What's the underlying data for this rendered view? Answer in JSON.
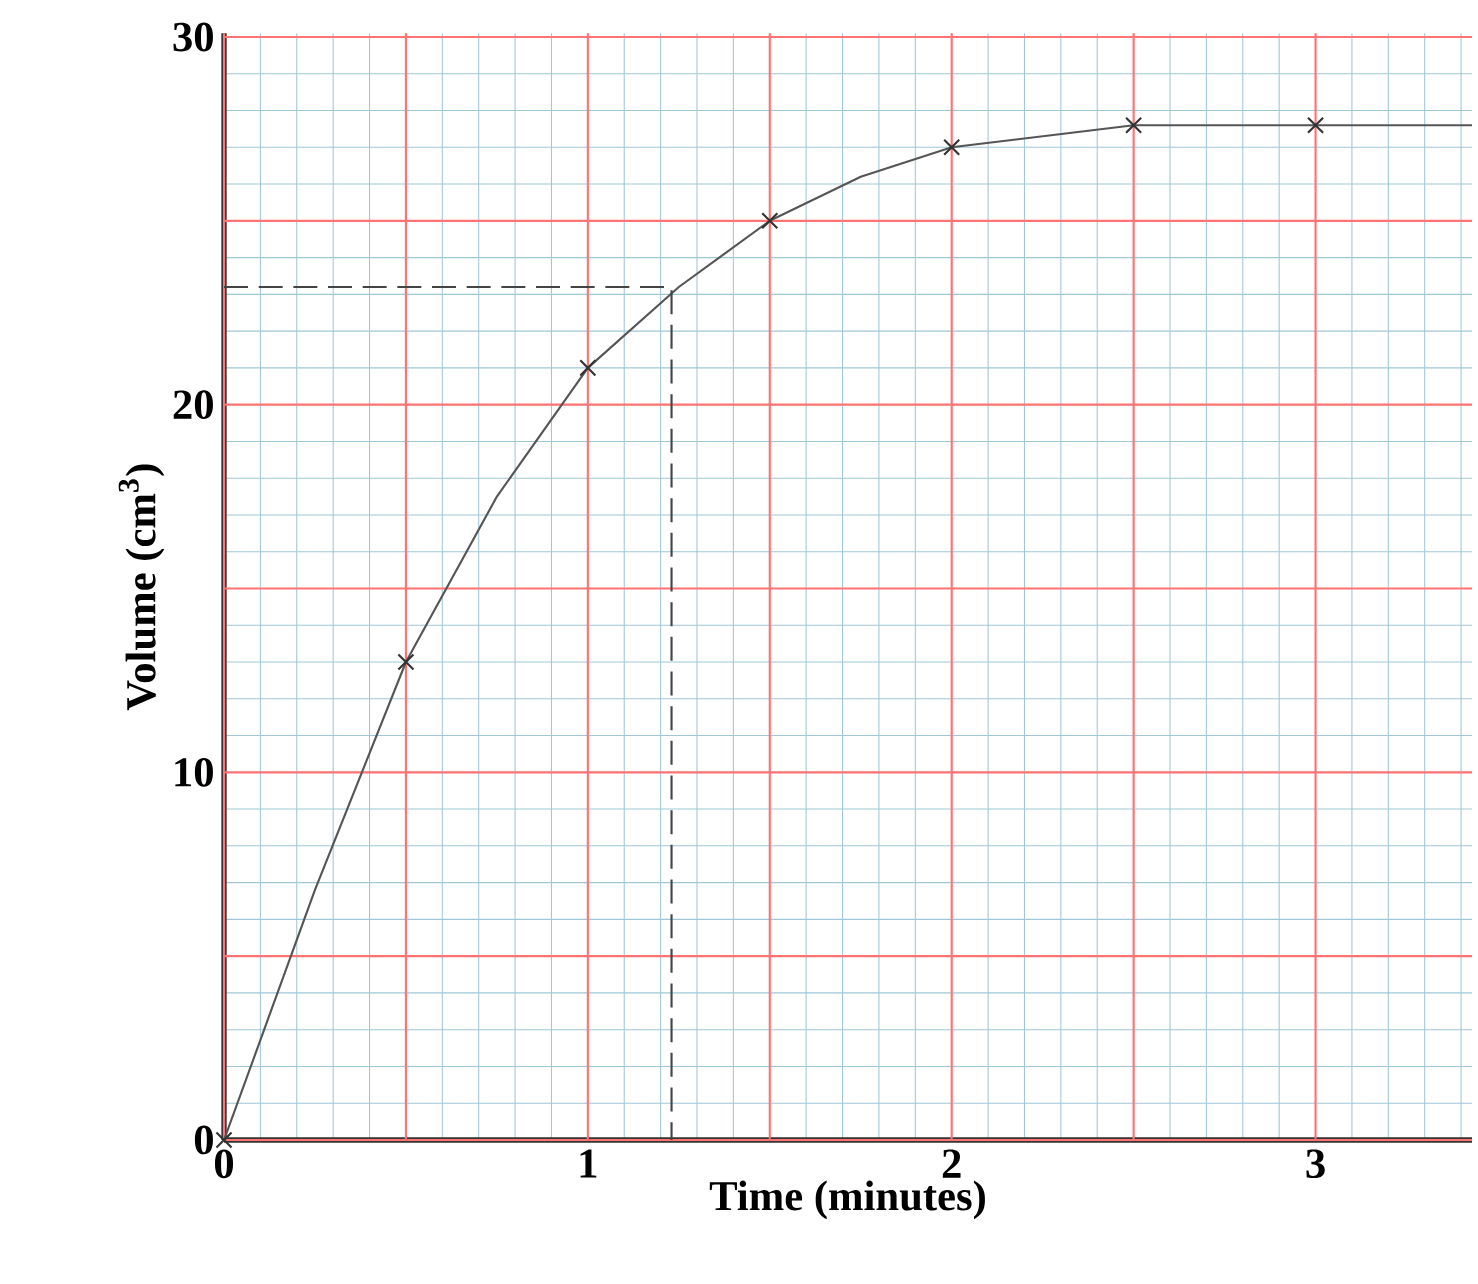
{
  "chart_data": {
    "type": "line",
    "xlabel": "Time (minutes)",
    "ylabel": "Volume (cm$^{3}$)",
    "xlim": [
      0,
      3.43
    ],
    "ylim": [
      0,
      30.1
    ],
    "xticks": [
      0,
      {
        "value": 0.1,
        "label": null
      },
      {
        "value": 0.2,
        "label": null
      },
      {
        "value": 0.3,
        "label": null
      },
      {
        "value": 0.4,
        "label": null
      },
      {
        "value": 0.5,
        "label": null
      },
      {
        "value": 0.6,
        "label": null
      },
      {
        "value": 0.7,
        "label": null
      },
      {
        "value": 0.8,
        "label": null
      },
      {
        "value": 0.9,
        "label": null
      },
      1,
      {
        "value": 1.1,
        "label": null
      },
      {
        "value": 1.2,
        "label": null
      },
      {
        "value": 1.3,
        "label": null
      },
      {
        "value": 1.4,
        "label": null
      },
      {
        "value": 1.5,
        "label": null
      },
      {
        "value": 1.6,
        "label": null
      },
      {
        "value": 1.7,
        "label": null
      },
      {
        "value": 1.8,
        "label": null
      },
      {
        "value": 1.9,
        "label": null
      },
      2,
      {
        "value": 2.1,
        "label": null
      },
      {
        "value": 2.2,
        "label": null
      },
      {
        "value": 2.3,
        "label": null
      },
      {
        "value": 2.4,
        "label": null
      },
      {
        "value": 2.5,
        "label": null
      },
      {
        "value": 2.6,
        "label": null
      },
      {
        "value": 2.7,
        "label": null
      },
      {
        "value": 2.8,
        "label": null
      },
      {
        "value": 2.9,
        "label": null
      },
      3,
      {
        "value": 3.1,
        "label": null
      },
      {
        "value": 3.2,
        "label": null
      },
      {
        "value": 3.3,
        "label": null
      },
      {
        "value": 3.4,
        "label": null
      }
    ],
    "yticks": [
      0,
      {
        "value": 1,
        "label": null
      },
      {
        "value": 2,
        "label": null
      },
      {
        "value": 3,
        "label": null
      },
      {
        "value": 4,
        "label": null
      },
      {
        "value": 5,
        "label": null
      },
      {
        "value": 6,
        "label": null
      },
      {
        "value": 7,
        "label": null
      },
      {
        "value": 8,
        "label": null
      },
      {
        "value": 9,
        "label": null
      },
      10,
      {
        "value": 11,
        "label": null
      },
      {
        "value": 12,
        "label": null
      },
      {
        "value": 13,
        "label": null
      },
      {
        "value": 14,
        "label": null
      },
      {
        "value": 15,
        "label": null
      },
      {
        "value": 16,
        "label": null
      },
      {
        "value": 17,
        "label": null
      },
      {
        "value": 18,
        "label": null
      },
      {
        "value": 19,
        "label": null
      },
      20,
      {
        "value": 21,
        "label": null
      },
      {
        "value": 22,
        "label": null
      },
      {
        "value": 23,
        "label": null
      },
      {
        "value": 24,
        "label": null
      },
      {
        "value": 25,
        "label": null
      },
      {
        "value": 26,
        "label": null
      },
      {
        "value": 27,
        "label": null
      },
      {
        "value": 28,
        "label": null
      },
      {
        "value": 29,
        "label": null
      },
      30
    ],
    "grid": true,
    "series": [
      {
        "color": "#555555",
        "marker": "none",
        "x": [
          0,
          0.25,
          0.5,
          0.75,
          1,
          1.25,
          1.5,
          1.75,
          2,
          2.25,
          2.5,
          3,
          3.43
        ],
        "values": [
          0,
          6.8,
          13,
          17.5,
          21,
          23.2,
          25,
          26.2,
          27,
          27.3,
          27.6,
          27.6,
          27.6
        ]
      },
      {
        "type": "scatter",
        "color": "#333333",
        "marker": "cross",
        "x": [
          0,
          0.5,
          1,
          1.5,
          2,
          2.5,
          3
        ],
        "values": [
          0,
          13,
          21,
          25,
          27,
          27.6,
          27.6
        ]
      },
      {
        "type": "line",
        "color": "#444444",
        "marker": "none",
        "line_style": "dashed",
        "x": [
          0,
          1.23,
          1.23
        ],
        "values": [
          23.2,
          23.2,
          0
        ]
      }
    ]
  }
}
